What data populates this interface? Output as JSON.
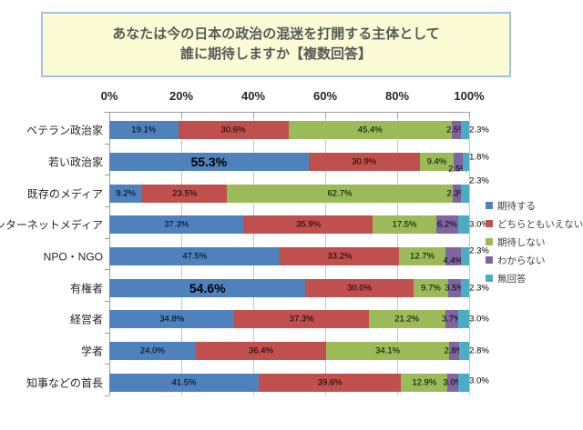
{
  "title": {
    "line1": "あなたは今の日本の政治の混迷を打開する主体として",
    "line2": "誰に期待しますか【複数回答】"
  },
  "colors": {
    "background": "#FFFFFF",
    "title_background": "#FBFBD6",
    "title_border": "#A3C1E0",
    "title_text": "#595959",
    "gridline": "#C6C6C6",
    "axis_line": "#9C9C9C",
    "data_label_text": "#000000",
    "axis_text": "#262626"
  },
  "chart_data": {
    "type": "bar",
    "subtype": "stacked-horizontal-percent",
    "title": "あなたは今の日本の政治の混迷を打開する主体として誰に期待しますか【複数回答】",
    "xlabel": "",
    "ylabel": "",
    "x_axis": {
      "position": "top",
      "range": [
        0,
        100
      ],
      "ticks": [
        "0%",
        "20%",
        "40%",
        "60%",
        "80%",
        "100%"
      ]
    },
    "grid": true,
    "legend_position": "right",
    "categories": [
      "ベテラン政治家",
      "若い政治家",
      "既存のメディア",
      "インターネットメディア",
      "NPO・NGO",
      "有権者",
      "経営者",
      "学者",
      "知事などの首長"
    ],
    "series": [
      {
        "name": "期待する",
        "color": "#4F81BD",
        "values": [
          19.1,
          55.3,
          9.2,
          37.3,
          47.5,
          54.6,
          34.8,
          24.0,
          41.5
        ]
      },
      {
        "name": "どちらともいえない",
        "color": "#C0504D",
        "values": [
          30.6,
          30.9,
          23.5,
          35.9,
          33.2,
          30.0,
          37.3,
          36.4,
          39.6
        ]
      },
      {
        "name": "期待しない",
        "color": "#9BBB59",
        "values": [
          45.4,
          9.4,
          62.7,
          17.5,
          12.7,
          9.7,
          21.2,
          34.1,
          12.9
        ]
      },
      {
        "name": "わからない",
        "color": "#8064A2",
        "values": [
          2.5,
          2.5,
          2.3,
          6.2,
          4.4,
          3.5,
          3.7,
          2.8,
          3.0
        ]
      },
      {
        "name": "無回答",
        "color": "#4BACC6",
        "values": [
          2.3,
          1.8,
          2.3,
          3.0,
          2.3,
          2.3,
          3.0,
          2.8,
          3.0
        ]
      }
    ],
    "emphasized_labels": [
      {
        "category": "若い政治家",
        "series": "期待する"
      },
      {
        "category": "有権者",
        "series": "期待する"
      }
    ],
    "label_format": "0.0%"
  }
}
